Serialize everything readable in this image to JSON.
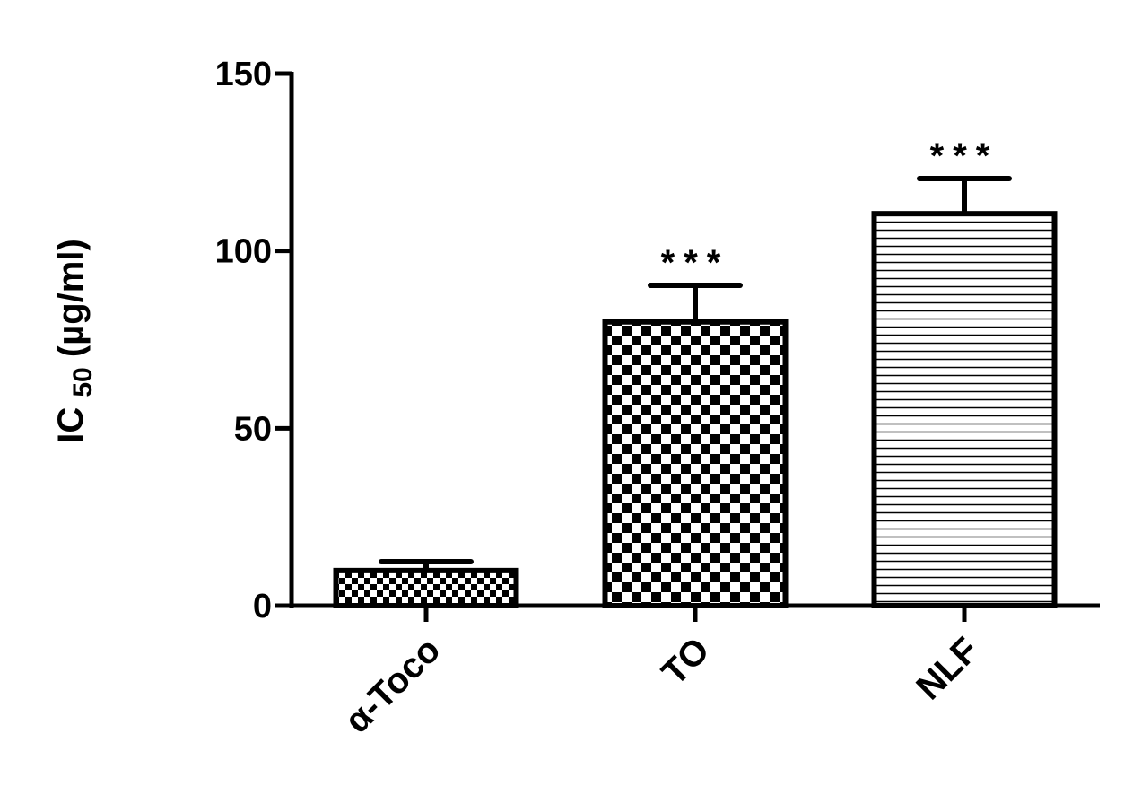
{
  "chart_data": {
    "type": "bar",
    "y_label": {
      "main": "IC",
      "sub": "50",
      "unit": "(µg/ml)"
    },
    "categories": [
      "α-Toco",
      "TO",
      "NLF"
    ],
    "values": [
      9.9,
      80,
      110.5
    ],
    "errors": [
      2.5,
      10.3,
      9.9
    ],
    "fill_patterns": [
      "checker-small",
      "checker",
      "hlines"
    ],
    "color": "#000000",
    "annotations": [
      {
        "category": "TO",
        "text": "***"
      },
      {
        "category": "NLF",
        "text": "***"
      }
    ],
    "ylim": [
      0,
      150
    ],
    "yticks": [
      0,
      50,
      100,
      150
    ],
    "grid": false
  }
}
